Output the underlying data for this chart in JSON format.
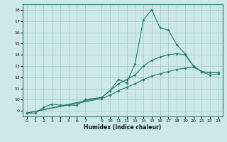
{
  "xlabel": "Humidex (Indice chaleur)",
  "bg_color": "#cce8e8",
  "grid_color": "#aacccc",
  "line_color": "#2a7a6a",
  "line1_x": [
    0,
    1,
    2,
    3,
    4,
    5,
    6,
    7,
    9,
    10,
    11,
    12,
    13,
    14,
    15,
    16,
    17,
    18,
    19,
    20,
    21,
    22,
    23
  ],
  "line1_y": [
    8.8,
    8.8,
    9.3,
    9.6,
    9.5,
    9.5,
    9.5,
    10.0,
    10.2,
    10.8,
    11.8,
    11.5,
    13.2,
    17.1,
    18.0,
    16.4,
    16.2,
    14.9,
    14.1,
    13.0,
    12.5,
    12.4,
    12.4
  ],
  "line2_x": [
    0,
    9,
    10,
    11,
    12,
    13,
    14,
    15,
    16,
    17,
    18,
    19,
    20,
    21,
    22,
    23
  ],
  "line2_y": [
    8.8,
    10.2,
    10.8,
    11.4,
    11.8,
    12.2,
    13.0,
    13.5,
    13.8,
    14.0,
    14.1,
    14.0,
    13.0,
    12.5,
    12.4,
    12.4
  ],
  "line3_x": [
    0,
    9,
    10,
    11,
    12,
    13,
    14,
    15,
    16,
    17,
    18,
    19,
    20,
    21,
    22,
    23
  ],
  "line3_y": [
    8.8,
    10.1,
    10.4,
    10.8,
    11.1,
    11.4,
    11.8,
    12.1,
    12.3,
    12.5,
    12.7,
    12.8,
    12.9,
    12.5,
    12.2,
    12.3
  ],
  "ylim": [
    8.5,
    18.5
  ],
  "xlim": [
    -0.5,
    23.5
  ],
  "yticks": [
    9,
    10,
    11,
    12,
    13,
    14,
    15,
    16,
    17,
    18
  ],
  "xticks": [
    0,
    1,
    2,
    3,
    4,
    5,
    6,
    7,
    9,
    10,
    11,
    12,
    13,
    14,
    15,
    16,
    17,
    18,
    19,
    20,
    21,
    22,
    23
  ]
}
